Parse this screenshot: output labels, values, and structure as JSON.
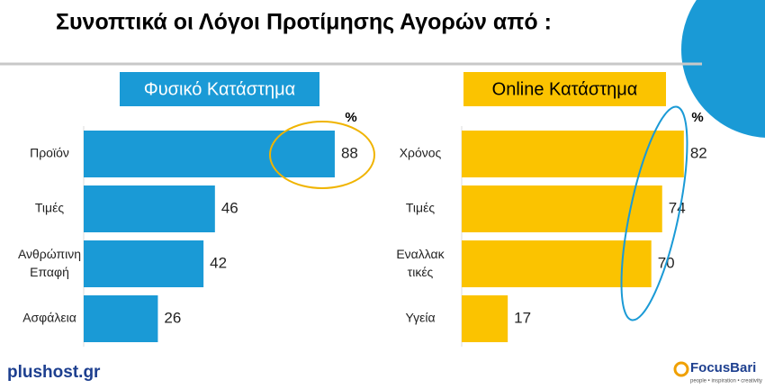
{
  "title": "Συνοπτικά οι Λόγοι Προτίμησης Αγορών από :",
  "chart_data": [
    {
      "type": "bar",
      "orientation": "horizontal",
      "title": "Φυσικό Κατάστημα",
      "unit": "%",
      "categories": [
        "Προϊόν",
        "Τιμές",
        "Ανθρώπινη Επαφή",
        "Ασφάλεια"
      ],
      "values": [
        88,
        46,
        42,
        26
      ],
      "color": "#1a9ad6",
      "xlim": [
        0,
        100
      ]
    },
    {
      "type": "bar",
      "orientation": "horizontal",
      "title": "Online Κατάστημα",
      "unit": "%",
      "categories": [
        "Χρόνος",
        "Τιμές",
        "Εναλλακ τικές",
        "Υγεία"
      ],
      "values": [
        82,
        74,
        70,
        17
      ],
      "color": "#fbc300",
      "xlim": [
        0,
        100
      ]
    }
  ],
  "logos": {
    "left": "plushost.gr",
    "right": "FocusBari",
    "right_tagline": "people • inspiration • creativity"
  }
}
